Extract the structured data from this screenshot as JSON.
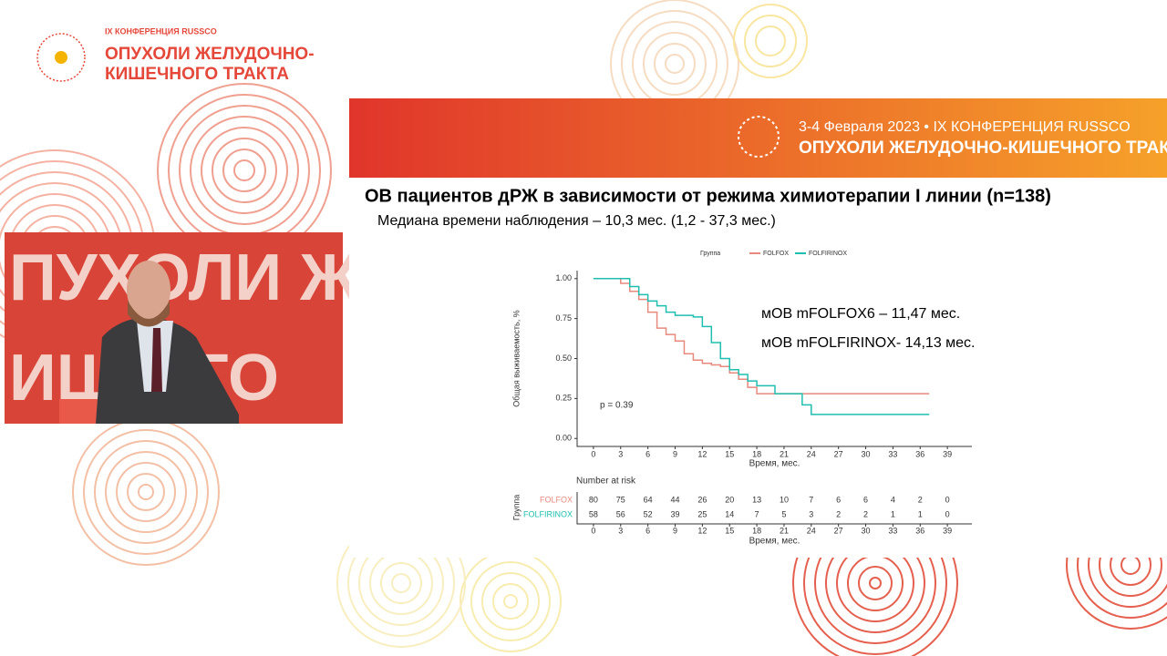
{
  "logo": {
    "line1": "IX КОНФЕРЕНЦИЯ RUSSCO",
    "line2": "ОПУХОЛИ ЖЕЛУДОЧНО-",
    "line3": "КИШЕЧНОГО ТРАКТА"
  },
  "banner": {
    "date": "3-4 Февраля 2023 • IX КОНФЕРЕНЦИЯ RUSSCO",
    "title": "ОПУХОЛИ ЖЕЛУДОЧНО-КИШЕЧНОГО ТРАКТА"
  },
  "video": {
    "backdrop_line1": "ПУХОЛИ Ж",
    "backdrop_line2": "ИШ ОГО"
  },
  "slide": {
    "title": "ОВ пациентов дРЖ в зависимости от режима химиотерапии I линии (n=138)",
    "subtitle": "Медиана времени наблюдения – 10,3 мес. (1,2 - 37,3 мес.)",
    "annotations": [
      "мОВ  mFOLFOX6 – 11,47 мес.",
      "мОВ mFOLFIRINOX- 14,13 мес."
    ]
  },
  "chart_data": {
    "type": "line",
    "step": true,
    "legend_title": "Группа",
    "x_label": "Время, мес.",
    "y_label": "Общая выживаемость, %",
    "p_value": "p = 0.39",
    "x": [
      0,
      1,
      2,
      3,
      4,
      5,
      6,
      7,
      8,
      9,
      10,
      11,
      12,
      13,
      14,
      15,
      16,
      17,
      18,
      19,
      20,
      21,
      22,
      23,
      24,
      25,
      26,
      27,
      28,
      29,
      30,
      31,
      32,
      33,
      34,
      35,
      36,
      37
    ],
    "series": [
      {
        "name": "FOLFOX",
        "color": "#e8897e",
        "values": [
          1,
          1,
          1,
          0.97,
          0.92,
          0.87,
          0.79,
          0.69,
          0.65,
          0.61,
          0.53,
          0.49,
          0.47,
          0.46,
          0.45,
          0.41,
          0.37,
          0.32,
          0.28,
          0.28,
          0.28,
          0.28,
          0.28,
          0.28,
          0.28,
          0.28,
          0.28,
          0.28,
          0.28,
          0.28,
          0.28,
          0.28,
          0.28,
          0.28,
          0.28,
          0.28,
          0.28,
          0.28
        ]
      },
      {
        "name": "FOLFIRINOX",
        "color": "#1fbfb0",
        "values": [
          1,
          1,
          1,
          1,
          0.95,
          0.9,
          0.86,
          0.83,
          0.79,
          0.77,
          0.77,
          0.76,
          0.7,
          0.6,
          0.5,
          0.43,
          0.4,
          0.36,
          0.33,
          0.33,
          0.28,
          0.28,
          0.28,
          0.21,
          0.15,
          0.15,
          0.15,
          0.15,
          0.15,
          0.15,
          0.15,
          0.15,
          0.15,
          0.15,
          0.15,
          0.15,
          0.15,
          0.15
        ]
      }
    ],
    "xlim": [
      -1.8,
      41.7
    ],
    "xticks": [
      0,
      3,
      6,
      9,
      12,
      15,
      18,
      21,
      24,
      27,
      30,
      33,
      36,
      39
    ],
    "ylim": [
      -0.05,
      1.05
    ],
    "yticks": [
      {
        "value": 0,
        "label": "0.00"
      },
      {
        "value": 0.25,
        "label": "0.25"
      },
      {
        "value": 0.5,
        "label": "0.50"
      },
      {
        "value": 0.75,
        "label": "0.75"
      },
      {
        "value": 1,
        "label": "1.00"
      }
    ],
    "risk_table": {
      "title": "Number at risk",
      "group_label": "Группа",
      "rows": [
        {
          "values": [
            80,
            75,
            64,
            44,
            26,
            20,
            13,
            10,
            7,
            6,
            6,
            4,
            2,
            0
          ]
        },
        {
          "values": [
            58,
            56,
            52,
            39,
            25,
            14,
            7,
            5,
            3,
            2,
            2,
            1,
            1,
            0
          ]
        }
      ]
    }
  }
}
